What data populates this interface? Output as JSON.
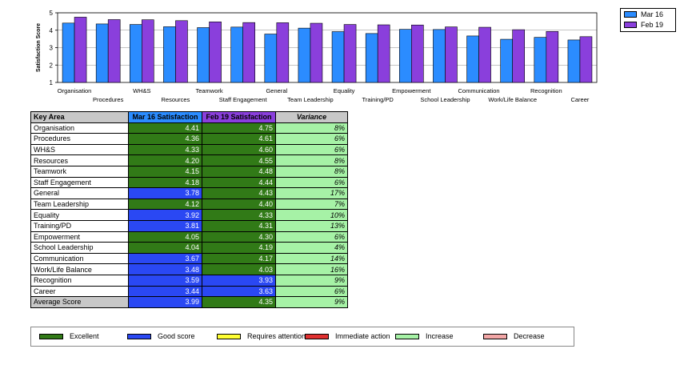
{
  "chart_data": {
    "type": "bar",
    "ylabel": "Satisfaction Score",
    "ylim": [
      1,
      5
    ],
    "yticks": [
      "1",
      "2",
      "3",
      "4",
      "5"
    ],
    "grid": true,
    "legend_position": "top-right",
    "categories": [
      "Organisation",
      "Procedures",
      "WH&S",
      "Resources",
      "Teamwork",
      "Staff Engagement",
      "General",
      "Team Leadership",
      "Equality",
      "Training/PD",
      "Empowerment",
      "School Leadership",
      "Communication",
      "Work/Life Balance",
      "Recognition",
      "Career"
    ],
    "series": [
      {
        "name": "Mar 16",
        "color": "#2b8cff",
        "values": [
          4.41,
          4.36,
          4.33,
          4.2,
          4.15,
          4.18,
          3.78,
          4.12,
          3.92,
          3.81,
          4.05,
          4.04,
          3.67,
          3.48,
          3.59,
          3.44
        ]
      },
      {
        "name": "Feb 19",
        "color": "#8a3fdc",
        "values": [
          4.75,
          4.61,
          4.6,
          4.55,
          4.48,
          4.44,
          4.43,
          4.4,
          4.33,
          4.31,
          4.3,
          4.19,
          4.17,
          4.03,
          3.93,
          3.63
        ]
      }
    ]
  },
  "table": {
    "headers": [
      "Key Area",
      "Mar 16 Satisfaction",
      "Feb 19 Satisfaction",
      "Variance"
    ],
    "header_colors": [
      "#c8c8c8",
      "#2b8cff",
      "#8a3fdc",
      "#c8c8c8"
    ],
    "rows": [
      {
        "area": "Organisation",
        "mar16": "4.41",
        "mar16_class": "excellent",
        "feb19": "4.75",
        "feb19_class": "excellent",
        "variance": "8%"
      },
      {
        "area": "Procedures",
        "mar16": "4.36",
        "mar16_class": "excellent",
        "feb19": "4.61",
        "feb19_class": "excellent",
        "variance": "6%"
      },
      {
        "area": "WH&S",
        "mar16": "4.33",
        "mar16_class": "excellent",
        "feb19": "4.60",
        "feb19_class": "excellent",
        "variance": "6%"
      },
      {
        "area": "Resources",
        "mar16": "4.20",
        "mar16_class": "excellent",
        "feb19": "4.55",
        "feb19_class": "excellent",
        "variance": "8%"
      },
      {
        "area": "Teamwork",
        "mar16": "4.15",
        "mar16_class": "excellent",
        "feb19": "4.48",
        "feb19_class": "excellent",
        "variance": "8%"
      },
      {
        "area": "Staff Engagement",
        "mar16": "4.18",
        "mar16_class": "excellent",
        "feb19": "4.44",
        "feb19_class": "excellent",
        "variance": "6%"
      },
      {
        "area": "General",
        "mar16": "3.78",
        "mar16_class": "good",
        "feb19": "4.43",
        "feb19_class": "excellent",
        "variance": "17%"
      },
      {
        "area": "Team Leadership",
        "mar16": "4.12",
        "mar16_class": "excellent",
        "feb19": "4.40",
        "feb19_class": "excellent",
        "variance": "7%"
      },
      {
        "area": "Equality",
        "mar16": "3.92",
        "mar16_class": "good",
        "feb19": "4.33",
        "feb19_class": "excellent",
        "variance": "10%"
      },
      {
        "area": "Training/PD",
        "mar16": "3.81",
        "mar16_class": "good",
        "feb19": "4.31",
        "feb19_class": "excellent",
        "variance": "13%"
      },
      {
        "area": "Empowerment",
        "mar16": "4.05",
        "mar16_class": "excellent",
        "feb19": "4.30",
        "feb19_class": "excellent",
        "variance": "6%"
      },
      {
        "area": "School Leadership",
        "mar16": "4.04",
        "mar16_class": "excellent",
        "feb19": "4.19",
        "feb19_class": "excellent",
        "variance": "4%"
      },
      {
        "area": "Communication",
        "mar16": "3.67",
        "mar16_class": "good",
        "feb19": "4.17",
        "feb19_class": "excellent",
        "variance": "14%"
      },
      {
        "area": "Work/Life Balance",
        "mar16": "3.48",
        "mar16_class": "good",
        "feb19": "4.03",
        "feb19_class": "excellent",
        "variance": "16%"
      },
      {
        "area": "Recognition",
        "mar16": "3.59",
        "mar16_class": "good",
        "feb19": "3.93",
        "feb19_class": "good",
        "variance": "9%"
      },
      {
        "area": "Career",
        "mar16": "3.44",
        "mar16_class": "good",
        "feb19": "3.63",
        "feb19_class": "good",
        "variance": "6%"
      }
    ],
    "average": {
      "area": "Average Score",
      "mar16": "3.99",
      "mar16_class": "good",
      "feb19": "4.35",
      "feb19_class": "excellent",
      "variance": "9%"
    }
  },
  "key": [
    {
      "label": "Excellent",
      "color": "#317a17"
    },
    {
      "label": "Good score",
      "color": "#2a48f3"
    },
    {
      "label": "Requires attention",
      "color": "#ffff33"
    },
    {
      "label": "Immediate action",
      "color": "#e03030"
    },
    {
      "label": "Increase",
      "color": "#a6f2a6"
    },
    {
      "label": "Decrease",
      "color": "#f2a6a6"
    }
  ]
}
